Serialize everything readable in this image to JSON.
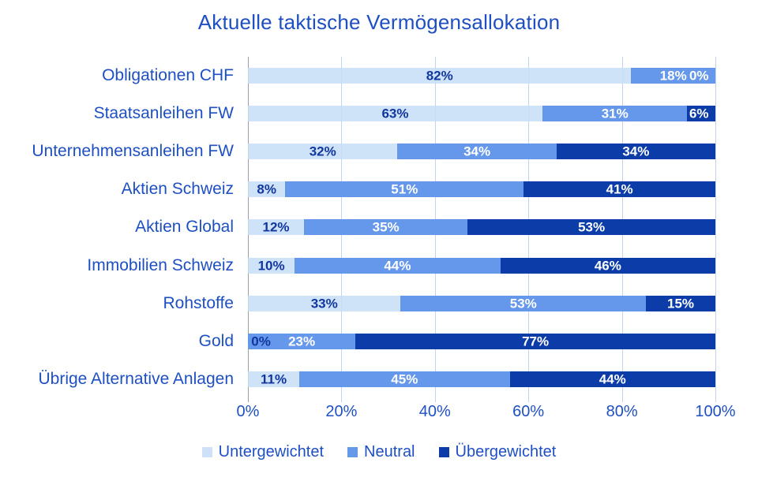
{
  "chart_data": {
    "type": "bar",
    "orientation": "horizontal-stacked",
    "title": "Aktuelle taktische Vermögensallokation",
    "categories": [
      "Obligationen CHF",
      "Staatsanleihen FW",
      "Unternehmensanleihen FW",
      "Aktien Schweiz",
      "Aktien Global",
      "Immobilien Schweiz",
      "Rohstoffe",
      "Gold",
      "Übrige Alternative Anlagen"
    ],
    "series": [
      {
        "name": "Untergewichtet",
        "key": "untergewichtet",
        "color": "rgba(199,222,247,0.85)",
        "label_color": "#11379F",
        "values": [
          82,
          63,
          32,
          8,
          12,
          10,
          33,
          0,
          11
        ]
      },
      {
        "name": "Neutral",
        "key": "neutral",
        "color": "#6598EA",
        "label_color": "#FFFFFF",
        "values": [
          18,
          31,
          34,
          51,
          35,
          44,
          53,
          23,
          45
        ]
      },
      {
        "name": "Übergewichtet",
        "key": "uebergewichtet",
        "color": "#0B3CA8",
        "label_color": "#FFFFFF",
        "values": [
          0,
          6,
          34,
          41,
          53,
          46,
          15,
          77,
          44
        ]
      }
    ],
    "value_label_suffix": "%",
    "x_axis": {
      "min": 0,
      "max": 100,
      "tick_labels": [
        "0%",
        "20%",
        "40%",
        "60%",
        "80%",
        "100%"
      ]
    },
    "legend_position": "bottom",
    "grid": "vertical",
    "colors": {
      "title_text": "#1E4FC3",
      "category_text": "#1E4FC3",
      "axis_text": "#1E4FC3",
      "legend_text": "#1E4FC3",
      "gridline": "#C3D5EE",
      "axis_line": "#9AA0A8",
      "legend_swatch_untergewichtet": "#CFE1F8",
      "background": "#FFFFFF"
    }
  }
}
